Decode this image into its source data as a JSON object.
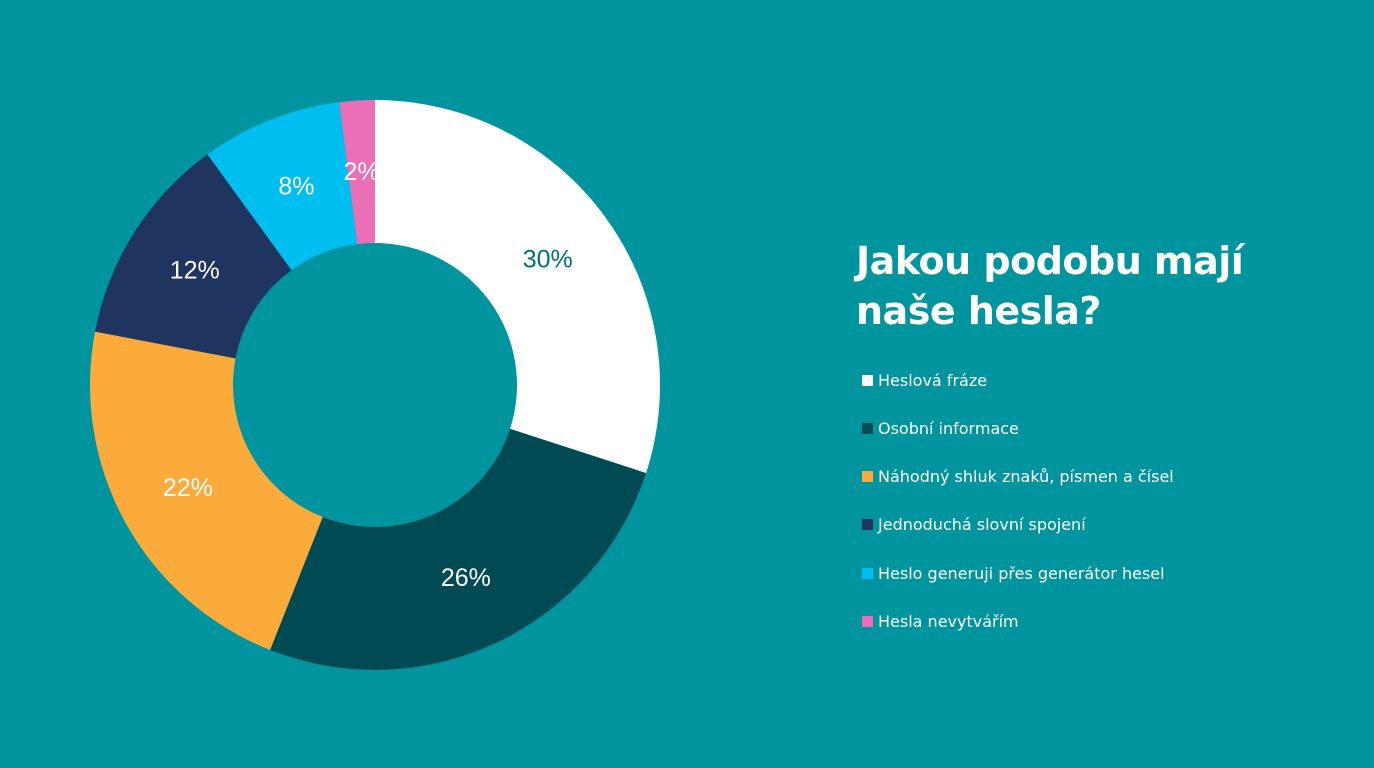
{
  "title": "Jakou podobu mají naše hesla?",
  "colors": {
    "background": "#00959e"
  },
  "chart_data": {
    "type": "pie",
    "variant": "donut",
    "title": "Jakou podobu mají naše hesla?",
    "legend_placement": "right",
    "slices": [
      {
        "label": "Heslová fráze",
        "value": 30,
        "value_label": "30%",
        "color": "#ffffff",
        "label_color": "#00707a"
      },
      {
        "label": "Osobní informace",
        "value": 26,
        "value_label": "26%",
        "color": "#004a54",
        "label_color": "#ffffff"
      },
      {
        "label": "Náhodný shluk znaků, písmen a čísel",
        "value": 22,
        "value_label": "22%",
        "color": "#fbaa3c",
        "label_color": "#ffffff"
      },
      {
        "label": "Jednoduchá slovní spojení",
        "value": 12,
        "value_label": "12%",
        "color": "#1f3560",
        "label_color": "#ffffff"
      },
      {
        "label": "Heslo generuji přes generátor hesel",
        "value": 8,
        "value_label": "8%",
        "color": "#00bff0",
        "label_color": "#ffffff"
      },
      {
        "label": "Hesla nevytvářím",
        "value": 2,
        "value_label": "2%",
        "color": "#ea6fb6",
        "label_color": "#ffffff"
      }
    ]
  }
}
